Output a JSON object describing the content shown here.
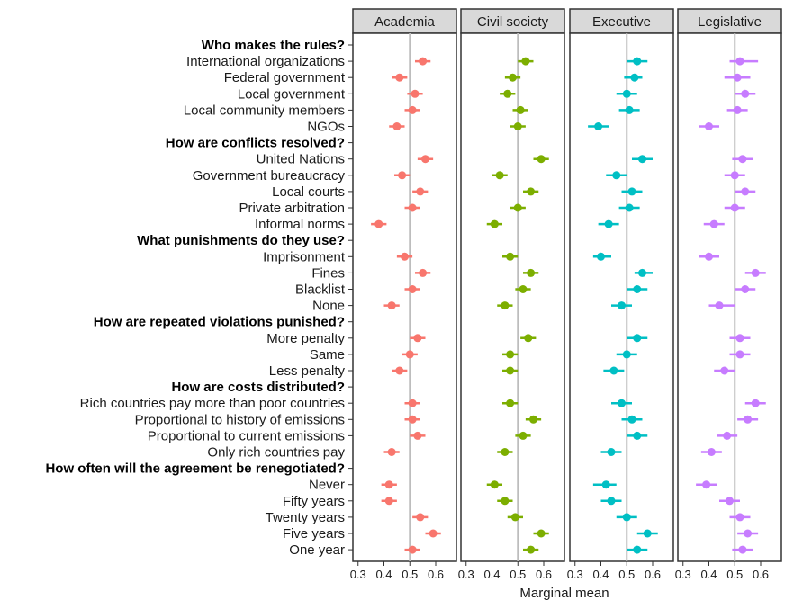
{
  "chart_data": {
    "type": "scatter",
    "subtype": "dot-whisker-faceted",
    "xlabel": "Marginal mean",
    "xlim": [
      0.28,
      0.68
    ],
    "x_ticks": [
      0.3,
      0.4,
      0.5,
      0.6
    ],
    "x_tick_labels": [
      "0.3",
      "0.4",
      "0.5",
      "0.6"
    ],
    "reference_line": 0.5,
    "facets": [
      {
        "name": "Academia",
        "color": "#F8766D"
      },
      {
        "name": "Civil society",
        "color": "#7CAE00"
      },
      {
        "name": "Executive",
        "color": "#00BFC4"
      },
      {
        "name": "Legislative",
        "color": "#C77CFF"
      }
    ],
    "rows": [
      {
        "label": "Who makes the rules?",
        "header": true
      },
      {
        "label": "International organizations",
        "values": [
          {
            "est": 0.55,
            "lo": 0.52,
            "hi": 0.58
          },
          {
            "est": 0.53,
            "lo": 0.5,
            "hi": 0.56
          },
          {
            "est": 0.54,
            "lo": 0.5,
            "hi": 0.58
          },
          {
            "est": 0.52,
            "lo": 0.48,
            "hi": 0.59
          }
        ]
      },
      {
        "label": "Federal government",
        "values": [
          {
            "est": 0.46,
            "lo": 0.43,
            "hi": 0.49
          },
          {
            "est": 0.48,
            "lo": 0.45,
            "hi": 0.51
          },
          {
            "est": 0.53,
            "lo": 0.49,
            "hi": 0.56
          },
          {
            "est": 0.51,
            "lo": 0.46,
            "hi": 0.56
          }
        ]
      },
      {
        "label": "Local government",
        "values": [
          {
            "est": 0.52,
            "lo": 0.49,
            "hi": 0.55
          },
          {
            "est": 0.46,
            "lo": 0.43,
            "hi": 0.49
          },
          {
            "est": 0.5,
            "lo": 0.46,
            "hi": 0.54
          },
          {
            "est": 0.54,
            "lo": 0.5,
            "hi": 0.58
          }
        ]
      },
      {
        "label": "Local community members",
        "values": [
          {
            "est": 0.51,
            "lo": 0.48,
            "hi": 0.54
          },
          {
            "est": 0.51,
            "lo": 0.48,
            "hi": 0.54
          },
          {
            "est": 0.51,
            "lo": 0.47,
            "hi": 0.55
          },
          {
            "est": 0.51,
            "lo": 0.47,
            "hi": 0.55
          }
        ]
      },
      {
        "label": "NGOs",
        "values": [
          {
            "est": 0.45,
            "lo": 0.42,
            "hi": 0.48
          },
          {
            "est": 0.5,
            "lo": 0.47,
            "hi": 0.53
          },
          {
            "est": 0.39,
            "lo": 0.35,
            "hi": 0.43
          },
          {
            "est": 0.4,
            "lo": 0.36,
            "hi": 0.44
          }
        ]
      },
      {
        "label": "How are conflicts resolved?",
        "header": true
      },
      {
        "label": "United Nations",
        "values": [
          {
            "est": 0.56,
            "lo": 0.53,
            "hi": 0.59
          },
          {
            "est": 0.59,
            "lo": 0.56,
            "hi": 0.62
          },
          {
            "est": 0.56,
            "lo": 0.52,
            "hi": 0.6
          },
          {
            "est": 0.53,
            "lo": 0.49,
            "hi": 0.57
          }
        ]
      },
      {
        "label": "Government bureaucracy",
        "values": [
          {
            "est": 0.47,
            "lo": 0.44,
            "hi": 0.5
          },
          {
            "est": 0.43,
            "lo": 0.4,
            "hi": 0.46
          },
          {
            "est": 0.46,
            "lo": 0.42,
            "hi": 0.5
          },
          {
            "est": 0.5,
            "lo": 0.46,
            "hi": 0.54
          }
        ]
      },
      {
        "label": "Local courts",
        "values": [
          {
            "est": 0.54,
            "lo": 0.51,
            "hi": 0.57
          },
          {
            "est": 0.55,
            "lo": 0.52,
            "hi": 0.58
          },
          {
            "est": 0.52,
            "lo": 0.48,
            "hi": 0.56
          },
          {
            "est": 0.54,
            "lo": 0.5,
            "hi": 0.58
          }
        ]
      },
      {
        "label": "Private arbitration",
        "values": [
          {
            "est": 0.51,
            "lo": 0.48,
            "hi": 0.54
          },
          {
            "est": 0.5,
            "lo": 0.47,
            "hi": 0.53
          },
          {
            "est": 0.51,
            "lo": 0.47,
            "hi": 0.55
          },
          {
            "est": 0.5,
            "lo": 0.46,
            "hi": 0.54
          }
        ]
      },
      {
        "label": "Informal norms",
        "values": [
          {
            "est": 0.38,
            "lo": 0.35,
            "hi": 0.41
          },
          {
            "est": 0.41,
            "lo": 0.38,
            "hi": 0.44
          },
          {
            "est": 0.43,
            "lo": 0.39,
            "hi": 0.47
          },
          {
            "est": 0.42,
            "lo": 0.38,
            "hi": 0.46
          }
        ]
      },
      {
        "label": "What punishments do they use?",
        "header": true
      },
      {
        "label": "Imprisonment",
        "values": [
          {
            "est": 0.48,
            "lo": 0.45,
            "hi": 0.51
          },
          {
            "est": 0.47,
            "lo": 0.44,
            "hi": 0.5
          },
          {
            "est": 0.4,
            "lo": 0.37,
            "hi": 0.44
          },
          {
            "est": 0.4,
            "lo": 0.36,
            "hi": 0.44
          }
        ]
      },
      {
        "label": "Fines",
        "values": [
          {
            "est": 0.55,
            "lo": 0.52,
            "hi": 0.58
          },
          {
            "est": 0.55,
            "lo": 0.52,
            "hi": 0.58
          },
          {
            "est": 0.56,
            "lo": 0.53,
            "hi": 0.6
          },
          {
            "est": 0.58,
            "lo": 0.54,
            "hi": 0.62
          }
        ]
      },
      {
        "label": "Blacklist",
        "values": [
          {
            "est": 0.51,
            "lo": 0.48,
            "hi": 0.54
          },
          {
            "est": 0.52,
            "lo": 0.49,
            "hi": 0.55
          },
          {
            "est": 0.54,
            "lo": 0.5,
            "hi": 0.58
          },
          {
            "est": 0.54,
            "lo": 0.5,
            "hi": 0.58
          }
        ]
      },
      {
        "label": "None",
        "values": [
          {
            "est": 0.43,
            "lo": 0.4,
            "hi": 0.46
          },
          {
            "est": 0.45,
            "lo": 0.42,
            "hi": 0.48
          },
          {
            "est": 0.48,
            "lo": 0.44,
            "hi": 0.52
          },
          {
            "est": 0.44,
            "lo": 0.4,
            "hi": 0.5
          }
        ]
      },
      {
        "label": "How are repeated violations punished?",
        "header": true
      },
      {
        "label": "More penalty",
        "values": [
          {
            "est": 0.53,
            "lo": 0.5,
            "hi": 0.56
          },
          {
            "est": 0.54,
            "lo": 0.51,
            "hi": 0.57
          },
          {
            "est": 0.54,
            "lo": 0.5,
            "hi": 0.58
          },
          {
            "est": 0.52,
            "lo": 0.48,
            "hi": 0.56
          }
        ]
      },
      {
        "label": "Same",
        "values": [
          {
            "est": 0.5,
            "lo": 0.47,
            "hi": 0.53
          },
          {
            "est": 0.47,
            "lo": 0.44,
            "hi": 0.5
          },
          {
            "est": 0.5,
            "lo": 0.46,
            "hi": 0.54
          },
          {
            "est": 0.52,
            "lo": 0.48,
            "hi": 0.56
          }
        ]
      },
      {
        "label": "Less penalty",
        "values": [
          {
            "est": 0.46,
            "lo": 0.43,
            "hi": 0.49
          },
          {
            "est": 0.47,
            "lo": 0.44,
            "hi": 0.5
          },
          {
            "est": 0.45,
            "lo": 0.41,
            "hi": 0.49
          },
          {
            "est": 0.46,
            "lo": 0.42,
            "hi": 0.5
          }
        ]
      },
      {
        "label": "How are costs distributed?",
        "header": true
      },
      {
        "label": "Rich countries pay more than poor countries",
        "values": [
          {
            "est": 0.51,
            "lo": 0.48,
            "hi": 0.54
          },
          {
            "est": 0.47,
            "lo": 0.44,
            "hi": 0.5
          },
          {
            "est": 0.48,
            "lo": 0.44,
            "hi": 0.52
          },
          {
            "est": 0.58,
            "lo": 0.54,
            "hi": 0.62
          }
        ]
      },
      {
        "label": "Proportional to history of emissions",
        "values": [
          {
            "est": 0.51,
            "lo": 0.48,
            "hi": 0.54
          },
          {
            "est": 0.56,
            "lo": 0.53,
            "hi": 0.59
          },
          {
            "est": 0.52,
            "lo": 0.48,
            "hi": 0.56
          },
          {
            "est": 0.55,
            "lo": 0.51,
            "hi": 0.59
          }
        ]
      },
      {
        "label": "Proportional to current emissions",
        "values": [
          {
            "est": 0.53,
            "lo": 0.5,
            "hi": 0.56
          },
          {
            "est": 0.52,
            "lo": 0.49,
            "hi": 0.55
          },
          {
            "est": 0.54,
            "lo": 0.5,
            "hi": 0.58
          },
          {
            "est": 0.47,
            "lo": 0.43,
            "hi": 0.51
          }
        ]
      },
      {
        "label": "Only rich countries pay",
        "values": [
          {
            "est": 0.43,
            "lo": 0.4,
            "hi": 0.46
          },
          {
            "est": 0.45,
            "lo": 0.42,
            "hi": 0.48
          },
          {
            "est": 0.44,
            "lo": 0.4,
            "hi": 0.48
          },
          {
            "est": 0.41,
            "lo": 0.37,
            "hi": 0.45
          }
        ]
      },
      {
        "label": "How often will the agreement be renegotiated?",
        "header": true
      },
      {
        "label": "Never",
        "values": [
          {
            "est": 0.42,
            "lo": 0.39,
            "hi": 0.45
          },
          {
            "est": 0.41,
            "lo": 0.38,
            "hi": 0.44
          },
          {
            "est": 0.42,
            "lo": 0.37,
            "hi": 0.46
          },
          {
            "est": 0.39,
            "lo": 0.35,
            "hi": 0.43
          }
        ]
      },
      {
        "label": "Fifty years",
        "values": [
          {
            "est": 0.42,
            "lo": 0.39,
            "hi": 0.45
          },
          {
            "est": 0.45,
            "lo": 0.42,
            "hi": 0.48
          },
          {
            "est": 0.44,
            "lo": 0.4,
            "hi": 0.48
          },
          {
            "est": 0.48,
            "lo": 0.44,
            "hi": 0.52
          }
        ]
      },
      {
        "label": "Twenty years",
        "values": [
          {
            "est": 0.54,
            "lo": 0.51,
            "hi": 0.57
          },
          {
            "est": 0.49,
            "lo": 0.46,
            "hi": 0.52
          },
          {
            "est": 0.5,
            "lo": 0.46,
            "hi": 0.54
          },
          {
            "est": 0.52,
            "lo": 0.48,
            "hi": 0.56
          }
        ]
      },
      {
        "label": "Five years",
        "values": [
          {
            "est": 0.59,
            "lo": 0.56,
            "hi": 0.62
          },
          {
            "est": 0.59,
            "lo": 0.56,
            "hi": 0.62
          },
          {
            "est": 0.58,
            "lo": 0.54,
            "hi": 0.62
          },
          {
            "est": 0.55,
            "lo": 0.51,
            "hi": 0.59
          }
        ]
      },
      {
        "label": "One year",
        "values": [
          {
            "est": 0.51,
            "lo": 0.48,
            "hi": 0.54
          },
          {
            "est": 0.55,
            "lo": 0.52,
            "hi": 0.58
          },
          {
            "est": 0.54,
            "lo": 0.5,
            "hi": 0.58
          },
          {
            "est": 0.53,
            "lo": 0.49,
            "hi": 0.57
          }
        ]
      }
    ]
  },
  "style": {
    "panel_border": "#333333",
    "strip_fill": "#d9d9d9",
    "ref_line": "#bdbdbd",
    "text": "#1a1a1a"
  }
}
